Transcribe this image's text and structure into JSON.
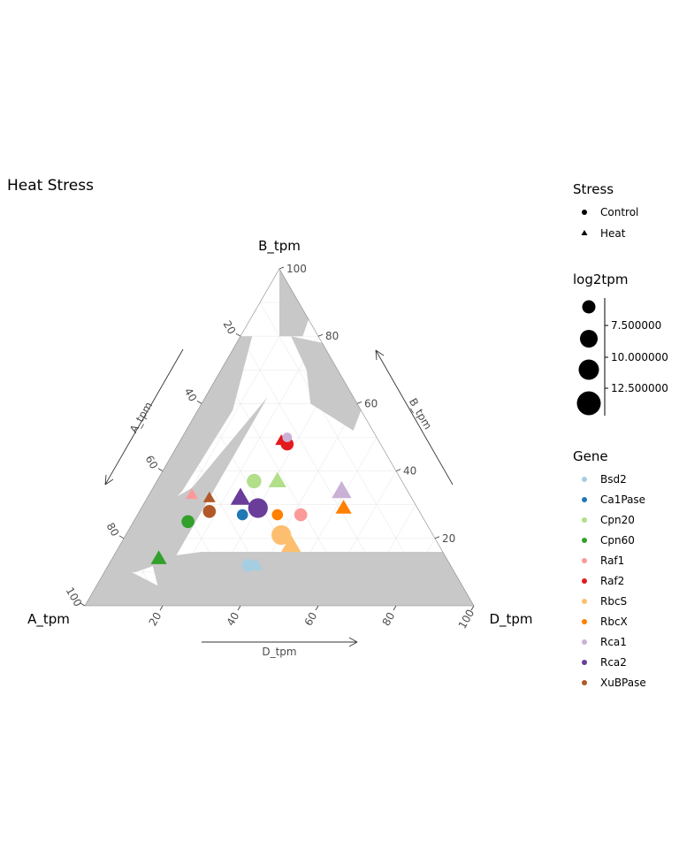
{
  "chart_data": {
    "type": "ternary-scatter",
    "title": "Heat Stress",
    "axes": {
      "A": {
        "label": "A_tpm",
        "arrow_label": "A_tpm"
      },
      "B": {
        "label": "B_tpm",
        "arrow_label": "B_tpm"
      },
      "D": {
        "label": "D_tpm",
        "arrow_label": "D_tpm"
      }
    },
    "ticks": [
      "20",
      "40",
      "60",
      "80",
      "100"
    ],
    "tick_values": [
      20,
      40,
      60,
      80,
      100
    ],
    "points": [
      {
        "gene": "Raf2",
        "stress": "Control",
        "A": 24,
        "B": 48,
        "D": 28,
        "log2tpm": 9.5
      },
      {
        "gene": "Raf2",
        "stress": "Heat",
        "A": 25,
        "B": 49,
        "D": 26,
        "log2tpm": 8.5
      },
      {
        "gene": "Rca1",
        "stress": "Control",
        "A": 23,
        "B": 50,
        "D": 27,
        "log2tpm": 7.5
      },
      {
        "gene": "Cpn20",
        "stress": "Control",
        "A": 38,
        "B": 37,
        "D": 25,
        "log2tpm": 10.5
      },
      {
        "gene": "Cpn20",
        "stress": "Heat",
        "A": 32,
        "B": 37,
        "D": 31,
        "log2tpm": 11.5
      },
      {
        "gene": "Rca1",
        "stress": "Heat",
        "A": 17,
        "B": 34,
        "D": 49,
        "log2tpm": 12.5
      },
      {
        "gene": "Raf1",
        "stress": "Heat",
        "A": 56,
        "B": 33,
        "D": 11,
        "log2tpm": 8.5
      },
      {
        "gene": "Raf1",
        "stress": "Control",
        "A": 31,
        "B": 27,
        "D": 42,
        "log2tpm": 9.5
      },
      {
        "gene": "Rca2",
        "stress": "Heat",
        "A": 44,
        "B": 32,
        "D": 24,
        "log2tpm": 12.5
      },
      {
        "gene": "Rca2",
        "stress": "Control",
        "A": 41,
        "B": 29,
        "D": 30,
        "log2tpm": 13.5
      },
      {
        "gene": "XuBPase",
        "stress": "Heat",
        "A": 52,
        "B": 32,
        "D": 16,
        "log2tpm": 8.5
      },
      {
        "gene": "XuBPase",
        "stress": "Control",
        "A": 54,
        "B": 28,
        "D": 18,
        "log2tpm": 9.5
      },
      {
        "gene": "Ca1Pase",
        "stress": "Control",
        "A": 46,
        "B": 27,
        "D": 27,
        "log2tpm": 8.5
      },
      {
        "gene": "Cpn60",
        "stress": "Control",
        "A": 61,
        "B": 25,
        "D": 14,
        "log2tpm": 9.5
      },
      {
        "gene": "RbcX",
        "stress": "Control",
        "A": 37,
        "B": 27,
        "D": 36,
        "log2tpm": 8.5
      },
      {
        "gene": "RbcX",
        "stress": "Heat",
        "A": 19,
        "B": 29,
        "D": 52,
        "log2tpm": 10.5
      },
      {
        "gene": "RbcS",
        "stress": "Control",
        "A": 39,
        "B": 21,
        "D": 40,
        "log2tpm": 13.5
      },
      {
        "gene": "RbcS",
        "stress": "Heat",
        "A": 38,
        "B": 18,
        "D": 44,
        "log2tpm": 12.5
      },
      {
        "gene": "Cpn60",
        "stress": "Heat",
        "A": 74,
        "B": 14,
        "D": 12,
        "log2tpm": 10.5
      },
      {
        "gene": "Bsd2",
        "stress": "Control",
        "A": 52,
        "B": 12,
        "D": 36,
        "log2tpm": 9.5
      },
      {
        "gene": "Bsd2",
        "stress": "Heat",
        "A": 50,
        "B": 12,
        "D": 38,
        "log2tpm": 9.5
      }
    ],
    "legend": {
      "stress": {
        "title": "Stress",
        "items": [
          "Control",
          "Heat"
        ]
      },
      "size": {
        "title": "log2tpm",
        "labels": [
          "7.500000",
          "10.000000",
          "12.500000"
        ]
      },
      "gene": {
        "title": "Gene",
        "items": [
          {
            "name": "Bsd2",
            "color": "#a6cee3"
          },
          {
            "name": "Ca1Pase",
            "color": "#1f78b4"
          },
          {
            "name": "Cpn20",
            "color": "#b2df8a"
          },
          {
            "name": "Cpn60",
            "color": "#33a02c"
          },
          {
            "name": "Raf1",
            "color": "#fb9a99"
          },
          {
            "name": "Raf2",
            "color": "#e31a1c"
          },
          {
            "name": "RbcS",
            "color": "#fdbf6f"
          },
          {
            "name": "RbcX",
            "color": "#ff7f00"
          },
          {
            "name": "Rca1",
            "color": "#cab2d6"
          },
          {
            "name": "Rca2",
            "color": "#6a3d9a"
          },
          {
            "name": "XuBPase",
            "color": "#b15928"
          }
        ]
      }
    },
    "density_fill": "#c8c8c8"
  }
}
